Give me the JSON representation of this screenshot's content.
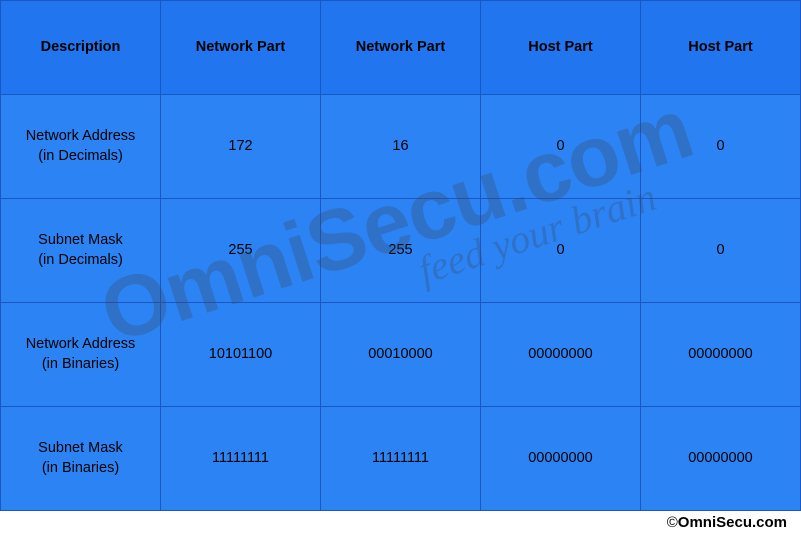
{
  "table": {
    "background_header": "#2176f0",
    "background_cell": "#2c84f4",
    "border_color": "#1a56c4",
    "text_color": "#000000",
    "font_size": 14.5,
    "header_font_weight": 700,
    "columns": [
      "Description",
      "Network Part",
      "Network Part",
      "Host Part",
      "Host Part"
    ],
    "rows": [
      {
        "label_line1": "Network Address",
        "label_line2": "(in Decimals)",
        "cells": [
          "172",
          "16",
          "0",
          "0"
        ]
      },
      {
        "label_line1": "Subnet Mask",
        "label_line2": "(in Decimals)",
        "cells": [
          "255",
          "255",
          "0",
          "0"
        ]
      },
      {
        "label_line1": "Network Address",
        "label_line2": "(in Binaries)",
        "cells": [
          "10101100",
          "00010000",
          "00000000",
          "00000000"
        ]
      },
      {
        "label_line1": "Subnet Mask",
        "label_line2": "(in Binaries)",
        "cells": [
          "11111111",
          "11111111",
          "00000000",
          "00000000"
        ]
      }
    ]
  },
  "watermark": {
    "main": "OmniSecu.com",
    "sub": "feed your brain",
    "rotation_deg": -18,
    "color": "rgba(60,70,100,0.30)",
    "main_fontsize": 86,
    "sub_fontsize": 40
  },
  "copyright": {
    "symbol": "©",
    "text": "OmniSecu.com"
  }
}
